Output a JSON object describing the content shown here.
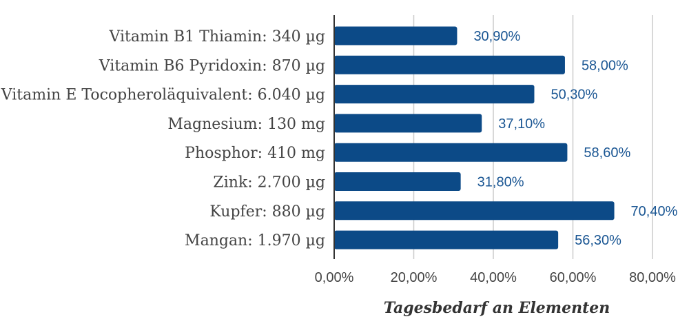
{
  "chart_data": {
    "type": "bar",
    "orientation": "horizontal",
    "categories": [
      "Vitamin B1 Thiamin: 340 µg",
      "Vitamin B6 Pyridoxin: 870 µg",
      "Vitamin E Tocopheroläquivalent: 6.040 µg",
      "Magnesium: 130 mg",
      "Phosphor: 410 mg",
      "Zink: 2.700 µg",
      "Kupfer: 880 µg",
      "Mangan: 1.970 µg"
    ],
    "values": [
      30.9,
      58.0,
      50.3,
      37.1,
      58.6,
      31.8,
      70.4,
      56.3
    ],
    "value_labels": [
      "30,90%",
      "58,00%",
      "50,30%",
      "37,10%",
      "58,60%",
      "31,80%",
      "70,40%",
      "56,30%"
    ],
    "x_ticks": [
      0,
      20,
      40,
      60,
      80
    ],
    "x_tick_labels": [
      "0,00%",
      "20,00%",
      "40,00%",
      "60,00%",
      "80,00%"
    ],
    "xlim": [
      0,
      80
    ],
    "xlabel": "Tagesbedarf an Elementen",
    "ylabel": "",
    "title": "",
    "grid": "vertical",
    "colors": {
      "bar": "#0c4a87",
      "label": "#1a5693",
      "grid": "#cccccc",
      "axis": "#333333"
    }
  }
}
